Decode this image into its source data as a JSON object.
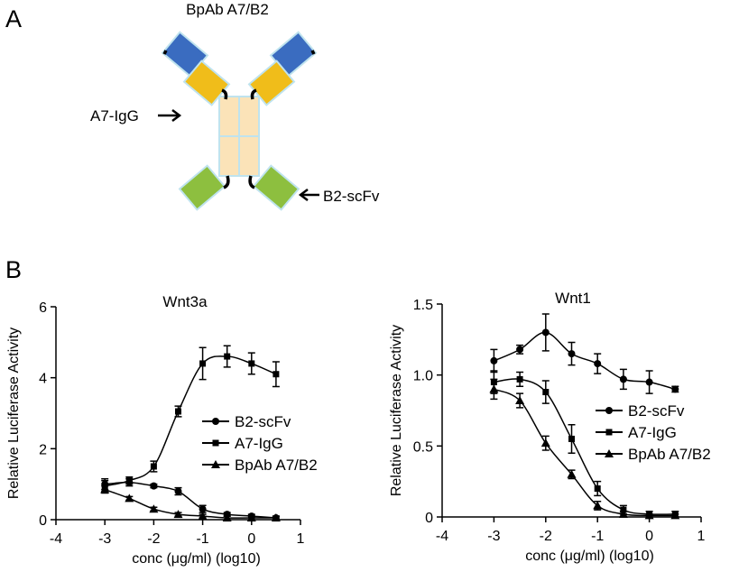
{
  "panels": {
    "a": "A",
    "b": "B"
  },
  "diagram": {
    "title": "BpAb A7/B2",
    "igg_label": "A7-IgG",
    "scfv_label": "B2-scFv"
  },
  "chart_data": [
    {
      "type": "line",
      "title": "Wnt3a",
      "x_label": "conc (μg/ml) (log10)",
      "y_label": "Relative Luciferase Activity",
      "xlim": [
        -4,
        1
      ],
      "xticks": [
        -4,
        -3,
        -2,
        -1,
        0,
        1
      ],
      "ylim": [
        0,
        6
      ],
      "yticks": [
        0,
        2,
        4,
        6
      ],
      "x": [
        -3,
        -2.5,
        -2,
        -1.5,
        -1,
        -0.5,
        0,
        0.5
      ],
      "series": [
        {
          "name": "B2-scFv",
          "color": "#000000",
          "marker": "circle",
          "values": [
            1.0,
            1.05,
            0.95,
            0.8,
            0.3,
            0.15,
            0.1,
            0.05
          ],
          "errors": [
            0.15,
            0.1,
            0.05,
            0.1,
            0.1,
            0.05,
            0.05,
            0.05
          ]
        },
        {
          "name": "A7-IgG",
          "color": "#000000",
          "marker": "square",
          "values": [
            0.95,
            1.1,
            1.5,
            3.05,
            4.4,
            4.6,
            4.4,
            4.1
          ],
          "errors": [
            0.15,
            0.1,
            0.15,
            0.15,
            0.45,
            0.3,
            0.3,
            0.35
          ]
        },
        {
          "name": "BpAb A7/B2",
          "color": "#000000",
          "marker": "triangle",
          "values": [
            0.85,
            0.6,
            0.3,
            0.15,
            0.1,
            0.05,
            0.05,
            0.05
          ],
          "errors": [
            0.1,
            0.05,
            0.05,
            0.05,
            0.05,
            0.05,
            0.05,
            0.05
          ]
        }
      ]
    },
    {
      "type": "line",
      "title": "Wnt1",
      "x_label": "conc (μg/ml) (log10)",
      "y_label": "Relative Luciferase Activity",
      "xlim": [
        -4,
        1
      ],
      "xticks": [
        -4,
        -3,
        -2,
        -1,
        0,
        1
      ],
      "ylim": [
        0,
        1.5
      ],
      "yticks": [
        0,
        0.5,
        {
          "value": 1,
          "label": "1.0"
        },
        1.5
      ],
      "x": [
        -3,
        -2.5,
        -2,
        -1.5,
        -1,
        -0.5,
        0,
        0.5
      ],
      "series": [
        {
          "name": "B2-scFv",
          "color": "#000000",
          "marker": "circle",
          "values": [
            1.1,
            1.18,
            1.3,
            1.15,
            1.08,
            0.97,
            0.95,
            0.9
          ],
          "errors": [
            0.08,
            0.03,
            0.13,
            0.08,
            0.07,
            0.07,
            0.08,
            0.02
          ]
        },
        {
          "name": "A7-IgG",
          "color": "#000000",
          "marker": "square",
          "values": [
            0.95,
            0.97,
            0.88,
            0.55,
            0.2,
            0.05,
            0.02,
            0.02
          ],
          "errors": [
            0.08,
            0.05,
            0.08,
            0.1,
            0.05,
            0.03,
            0.02,
            0.02
          ]
        },
        {
          "name": "BpAb A7/B2",
          "color": "#000000",
          "marker": "triangle",
          "values": [
            0.9,
            0.82,
            0.52,
            0.3,
            0.08,
            0.02,
            0.01,
            0.01
          ],
          "errors": [
            0.07,
            0.05,
            0.05,
            0.03,
            0.03,
            0.02,
            0.01,
            0.01
          ]
        }
      ]
    }
  ]
}
